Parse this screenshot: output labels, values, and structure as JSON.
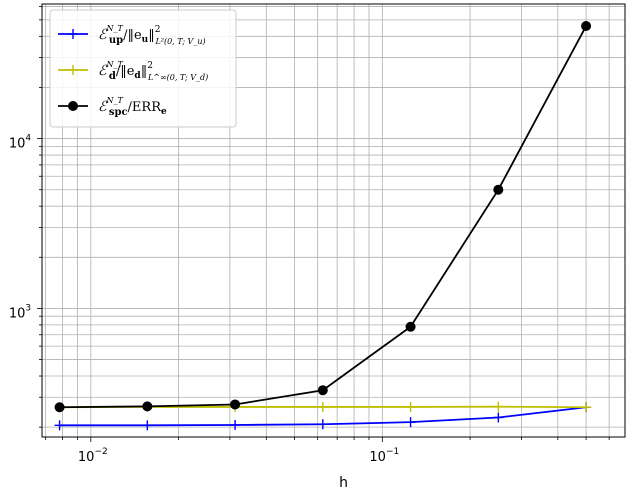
{
  "chart_data": {
    "type": "line",
    "xlabel": "h",
    "ylabel": "",
    "title": "",
    "xscale": "log",
    "yscale": "log",
    "xlim": [
      0.0068,
      0.68
    ],
    "ylim": [
      175,
      62000
    ],
    "grid": true,
    "legend_position": "top-left",
    "x": [
      0.0078125,
      0.015625,
      0.03125,
      0.0625,
      0.125,
      0.25,
      0.5
    ],
    "x_ticks": [
      {
        "value": 0.01,
        "base": "10",
        "exp": "−2"
      },
      {
        "value": 0.1,
        "base": "10",
        "exp": "−1"
      }
    ],
    "y_ticks": [
      {
        "value": 1000,
        "base": "10",
        "exp": "3"
      },
      {
        "value": 10000,
        "base": "10",
        "exp": "4"
      }
    ],
    "series": [
      {
        "legend": {
          "main": "ℰ",
          "sub": "up",
          "sup": "N_T",
          "rest": "/‖e",
          "rest_sub": "u",
          "rest2": "‖",
          "norm_sub": "L²(0, T; V_u)",
          "norm_sup": "2"
        },
        "color": "#0000ff",
        "marker": "plus",
        "values": [
          205,
          205,
          206,
          208,
          214,
          228,
          262
        ]
      },
      {
        "legend": {
          "main": "ℰ",
          "sub": "d",
          "sup": "N_T",
          "rest": "/‖e",
          "rest_sub": "d",
          "rest2": "‖",
          "norm_sub": "L^∞(0, T; V_d)",
          "norm_sup": "2"
        },
        "color": "#bfbf00",
        "marker": "plus",
        "values": [
          262,
          263,
          263,
          263,
          263,
          264,
          262
        ]
      },
      {
        "legend": {
          "main": "ℰ",
          "sub": "spc",
          "sup": "N_T",
          "rest": "/ERR",
          "rest_sub": "e",
          "rest2": "",
          "norm_sub": "",
          "norm_sup": ""
        },
        "color": "#000000",
        "marker": "circle",
        "values": [
          262,
          265,
          272,
          330,
          780,
          5000,
          46000
        ]
      }
    ]
  }
}
